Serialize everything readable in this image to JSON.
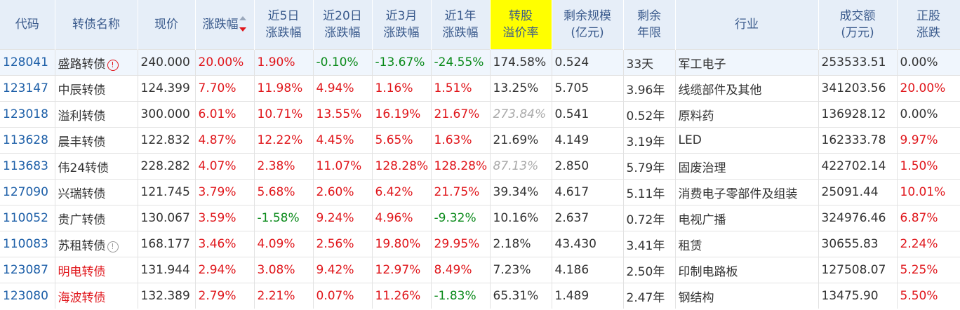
{
  "headers": {
    "code": "代码",
    "name": "转债名称",
    "price": "现价",
    "chg": "涨跌幅",
    "chg5d_1": "近5日",
    "chg5d_2": "涨跌幅",
    "chg20d_1": "近20日",
    "chg20d_2": "涨跌幅",
    "chg3m_1": "近3月",
    "chg3m_2": "涨跌幅",
    "chg1y_1": "近1年",
    "chg1y_2": "涨跌幅",
    "premium_1": "转股",
    "premium_2": "溢价率",
    "scale_1": "剩余规模",
    "scale_2": "(亿元)",
    "years_1": "剩余",
    "years_2": "年限",
    "industry": "行业",
    "volume_1": "成交额",
    "volume_2": "(万元)",
    "stock_1": "正股",
    "stock_2": "涨跌"
  },
  "rows": [
    {
      "code": "128041",
      "name": "盛路转债",
      "price": "240.000",
      "chg": "20.00%",
      "chg5d": "1.90%",
      "chg20d": "-0.10%",
      "chg3m": "-13.67%",
      "chg1y": "-24.55%",
      "premium": "174.58%",
      "scale": "0.524",
      "years": "33天",
      "industry": "军工电子",
      "volume": "253533.51",
      "stock": "0.00%"
    },
    {
      "code": "123147",
      "name": "中辰转债",
      "price": "124.399",
      "chg": "7.70%",
      "chg5d": "11.98%",
      "chg20d": "4.94%",
      "chg3m": "1.16%",
      "chg1y": "1.51%",
      "premium": "13.25%",
      "scale": "5.705",
      "years": "3.96年",
      "industry": "线缆部件及其他",
      "volume": "341203.56",
      "stock": "20.00%"
    },
    {
      "code": "123018",
      "name": "溢利转债",
      "price": "300.000",
      "chg": "6.01%",
      "chg5d": "10.71%",
      "chg20d": "13.55%",
      "chg3m": "16.19%",
      "chg1y": "21.67%",
      "premium": "273.84%",
      "scale": "0.541",
      "years": "0.52年",
      "industry": "原料药",
      "volume": "136928.12",
      "stock": "0.00%"
    },
    {
      "code": "113628",
      "name": "晨丰转债",
      "price": "122.832",
      "chg": "4.87%",
      "chg5d": "12.22%",
      "chg20d": "4.45%",
      "chg3m": "5.65%",
      "chg1y": "1.63%",
      "premium": "21.69%",
      "scale": "4.149",
      "years": "3.19年",
      "industry": "LED",
      "volume": "162333.78",
      "stock": "9.97%"
    },
    {
      "code": "113683",
      "name": "伟24转债",
      "price": "228.282",
      "chg": "4.07%",
      "chg5d": "2.38%",
      "chg20d": "11.07%",
      "chg3m": "128.28%",
      "chg1y": "128.28%",
      "premium": "87.13%",
      "scale": "2.850",
      "years": "5.79年",
      "industry": "固废治理",
      "volume": "422702.14",
      "stock": "1.50%"
    },
    {
      "code": "127090",
      "name": "兴瑞转债",
      "price": "121.745",
      "chg": "3.79%",
      "chg5d": "5.68%",
      "chg20d": "2.60%",
      "chg3m": "6.42%",
      "chg1y": "21.75%",
      "premium": "39.34%",
      "scale": "4.617",
      "years": "5.11年",
      "industry": "消费电子零部件及组装",
      "volume": "25091.44",
      "stock": "10.01%"
    },
    {
      "code": "110052",
      "name": "贵广转债",
      "price": "130.067",
      "chg": "3.59%",
      "chg5d": "-1.58%",
      "chg20d": "9.24%",
      "chg3m": "4.96%",
      "chg1y": "-9.32%",
      "premium": "10.16%",
      "scale": "2.637",
      "years": "0.72年",
      "industry": "电视广播",
      "volume": "324976.46",
      "stock": "6.87%"
    },
    {
      "code": "110083",
      "name": "苏租转债",
      "price": "168.177",
      "chg": "3.46%",
      "chg5d": "4.09%",
      "chg20d": "2.56%",
      "chg3m": "19.80%",
      "chg1y": "29.95%",
      "premium": "2.18%",
      "scale": "43.430",
      "years": "3.41年",
      "industry": "租赁",
      "volume": "30655.83",
      "stock": "2.24%"
    },
    {
      "code": "123087",
      "name": "明电转债",
      "price": "131.944",
      "chg": "2.94%",
      "chg5d": "3.08%",
      "chg20d": "9.42%",
      "chg3m": "12.97%",
      "chg1y": "8.49%",
      "premium": "7.23%",
      "scale": "4.186",
      "years": "2.50年",
      "industry": "印制电路板",
      "volume": "127508.07",
      "stock": "5.25%"
    },
    {
      "code": "123080",
      "name": "海波转债",
      "price": "132.389",
      "chg": "2.79%",
      "chg5d": "2.21%",
      "chg20d": "0.07%",
      "chg3m": "11.26%",
      "chg1y": "-1.83%",
      "premium": "65.31%",
      "scale": "1.489",
      "years": "2.47年",
      "industry": "钢结构",
      "volume": "13475.90",
      "stock": "5.50%"
    }
  ],
  "badges": {
    "row0": "!",
    "row7": "!"
  }
}
